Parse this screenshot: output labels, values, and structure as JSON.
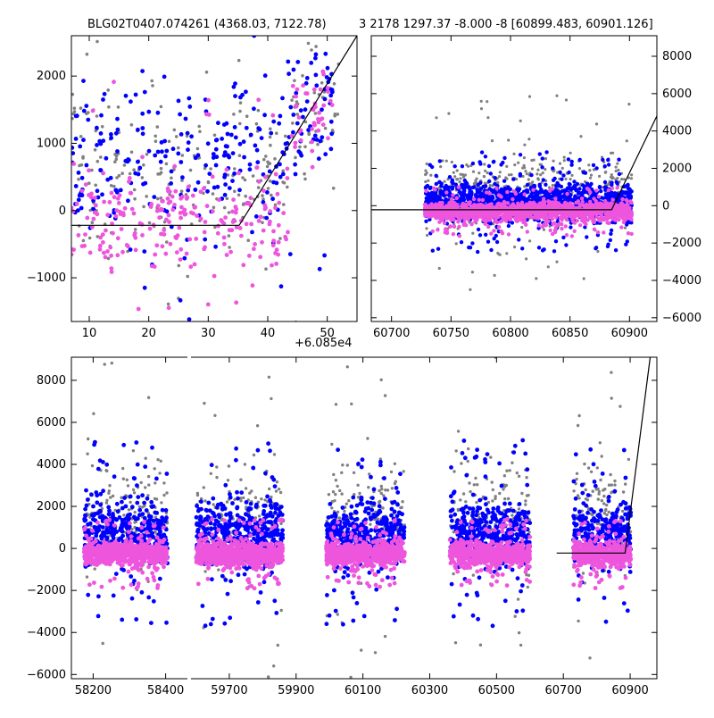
{
  "title_left": "BLG02T0407.074261 (4368.03, 7122.78)",
  "title_right": "3 2178 1297.37 -8.000 -8 [60899.483, 60901.126]",
  "offset_label": "+6.085e4",
  "colors": {
    "grey": "#808080",
    "blue": "#0000ff",
    "pink": "#ee55dd",
    "line": "#000000"
  },
  "chart_data": [
    {
      "id": "top-left",
      "type": "scatter",
      "xlim": [
        7,
        55
      ],
      "ylim": [
        -1650,
        2600
      ],
      "xticks": [
        10,
        20,
        30,
        40,
        50
      ],
      "yticks": [
        -1000,
        0,
        1000,
        2000
      ],
      "x_offset": 60850,
      "model_line": [
        [
          7,
          -220
        ],
        [
          35.2,
          -220
        ],
        [
          55,
          2600
        ]
      ],
      "series": [
        {
          "name": "grey",
          "color": "#808080",
          "x_range": [
            7,
            52
          ],
          "y_center": 600,
          "y_spread": 1200,
          "n": 260
        },
        {
          "name": "blue",
          "color": "#0000ff",
          "x_range": [
            7,
            51
          ],
          "y_center": 700,
          "y_spread": 1100,
          "n": 300
        },
        {
          "name": "pink",
          "color": "#ee55dd",
          "x_range": [
            7,
            51
          ],
          "y_center": -150,
          "y_spread": 700,
          "n": 280
        }
      ]
    },
    {
      "id": "top-right",
      "type": "scatter",
      "xlim": [
        60683,
        60923
      ],
      "ylim": [
        -6200,
        9100
      ],
      "xticks": [
        60700,
        60750,
        60800,
        60850,
        60900
      ],
      "yticks": [
        -6000,
        -4000,
        -2000,
        0,
        2000,
        4000,
        6000,
        8000
      ],
      "model_line": [
        [
          60683,
          -220
        ],
        [
          60885,
          -220
        ],
        [
          60923,
          4800
        ]
      ],
      "series": [
        {
          "name": "grey",
          "color": "#808080",
          "x_range": [
            60728,
            60902
          ],
          "y_center": 800,
          "y_spread": 1800,
          "n": 450
        },
        {
          "name": "blue",
          "color": "#0000ff",
          "x_range": [
            60728,
            60902
          ],
          "y_center": 200,
          "y_spread": 900,
          "n": 1300
        },
        {
          "name": "pink",
          "color": "#ee55dd",
          "x_range": [
            60728,
            60902
          ],
          "y_center": -300,
          "y_spread": 450,
          "n": 1500
        }
      ]
    },
    {
      "id": "bottom",
      "type": "scatter",
      "ylim": [
        -6200,
        9100
      ],
      "yticks": [
        -6000,
        -4000,
        -2000,
        0,
        2000,
        4000,
        6000,
        8000
      ],
      "segments": [
        {
          "xlim": [
            58140,
            58465
          ],
          "xticks": [
            58200,
            58400
          ]
        },
        {
          "xlim": [
            59580,
            60980
          ],
          "xticks": [
            59700,
            59900,
            60100,
            60300,
            60500,
            60700,
            60900
          ]
        }
      ],
      "clusters": [
        {
          "segment": 0,
          "x_range": [
            58175,
            58405
          ]
        },
        {
          "segment": 1,
          "x_range": [
            59600,
            59860
          ]
        },
        {
          "segment": 1,
          "x_range": [
            59990,
            60225
          ]
        },
        {
          "segment": 1,
          "x_range": [
            60360,
            60600
          ]
        },
        {
          "segment": 1,
          "x_range": [
            60730,
            60902
          ]
        }
      ],
      "model_line": [
        [
          60680,
          -220
        ],
        [
          60885,
          -220
        ],
        [
          60960,
          9100
        ]
      ],
      "series": [
        {
          "name": "grey",
          "color": "#808080",
          "y_center": 1500,
          "y_spread": 2600,
          "n_per_cluster": 170
        },
        {
          "name": "blue",
          "color": "#0000ff",
          "y_center": 700,
          "y_spread": 1500,
          "n_per_cluster": 420
        },
        {
          "name": "pink",
          "color": "#ee55dd",
          "y_center": -250,
          "y_spread": 550,
          "n_per_cluster": 650
        }
      ]
    }
  ]
}
